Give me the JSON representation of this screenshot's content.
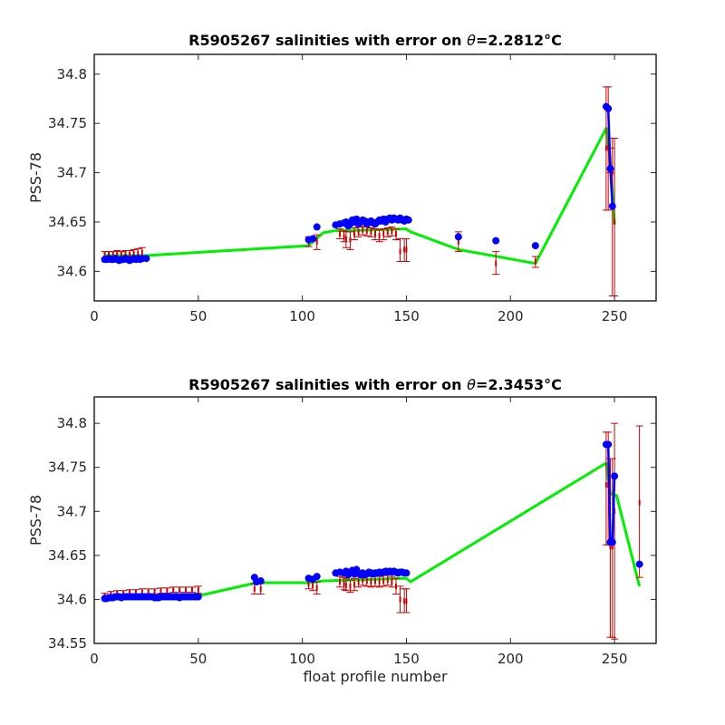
{
  "chart_data": [
    {
      "type": "line",
      "title_prefix": "R5905267 salinities with error on ",
      "title_theta": "θ",
      "title_value": "=2.2812",
      "title_unit": "°C",
      "xlabel": "",
      "ylabel": "PSS-78",
      "xlim": [
        0,
        270
      ],
      "ylim": [
        34.57,
        34.82
      ],
      "xticks": [
        0,
        50,
        100,
        150,
        200,
        250
      ],
      "yticks": [
        34.6,
        34.65,
        34.7,
        34.75,
        34.8
      ],
      "colors": {
        "points": "#0000ff",
        "errorbars": "#cc0000",
        "fit": "#00ee00"
      },
      "points": [
        [
          5,
          34.612
        ],
        [
          6,
          34.612
        ],
        [
          7,
          34.613
        ],
        [
          8,
          34.612
        ],
        [
          9,
          34.612
        ],
        [
          10,
          34.613
        ],
        [
          11,
          34.612
        ],
        [
          12,
          34.611
        ],
        [
          13,
          34.612
        ],
        [
          14,
          34.612
        ],
        [
          15,
          34.613
        ],
        [
          16,
          34.612
        ],
        [
          17,
          34.611
        ],
        [
          18,
          34.612
        ],
        [
          19,
          34.613
        ],
        [
          20,
          34.612
        ],
        [
          21,
          34.613
        ],
        [
          22,
          34.612
        ],
        [
          23,
          34.613
        ],
        [
          25,
          34.613
        ],
        [
          103,
          34.632
        ],
        [
          105,
          34.633
        ],
        [
          107,
          34.645
        ],
        [
          116,
          34.647
        ],
        [
          118,
          34.648
        ],
        [
          120,
          34.649
        ],
        [
          121,
          34.65
        ],
        [
          122,
          34.646
        ],
        [
          123,
          34.648
        ],
        [
          124,
          34.652
        ],
        [
          125,
          34.65
        ],
        [
          126,
          34.653
        ],
        [
          127,
          34.648
        ],
        [
          128,
          34.65
        ],
        [
          129,
          34.652
        ],
        [
          130,
          34.651
        ],
        [
          131,
          34.648
        ],
        [
          132,
          34.65
        ],
        [
          133,
          34.651
        ],
        [
          134,
          34.649
        ],
        [
          135,
          34.648
        ],
        [
          136,
          34.65
        ],
        [
          137,
          34.652
        ],
        [
          138,
          34.651
        ],
        [
          139,
          34.653
        ],
        [
          140,
          34.65
        ],
        [
          141,
          34.653
        ],
        [
          142,
          34.654
        ],
        [
          143,
          34.652
        ],
        [
          144,
          34.654
        ],
        [
          145,
          34.653
        ],
        [
          146,
          34.652
        ],
        [
          147,
          34.654
        ],
        [
          148,
          34.652
        ],
        [
          149,
          34.651
        ],
        [
          150,
          34.653
        ],
        [
          151,
          34.652
        ],
        [
          175,
          34.635
        ],
        [
          193,
          34.631
        ],
        [
          212,
          34.626
        ],
        [
          246,
          34.767
        ],
        [
          247,
          34.765
        ],
        [
          248,
          34.704
        ],
        [
          249,
          34.666
        ]
      ],
      "errorbars": [
        [
          5,
          34.617,
          34.62,
          34.613
        ],
        [
          7,
          34.617,
          34.62,
          34.613
        ],
        [
          9,
          34.617,
          34.62,
          34.613
        ],
        [
          11,
          34.618,
          34.621,
          34.614
        ],
        [
          13,
          34.617,
          34.62,
          34.613
        ],
        [
          15,
          34.618,
          34.621,
          34.614
        ],
        [
          17,
          34.617,
          34.621,
          34.613
        ],
        [
          19,
          34.618,
          34.622,
          34.614
        ],
        [
          21,
          34.618,
          34.623,
          34.613
        ],
        [
          23,
          34.619,
          34.624,
          34.614
        ],
        [
          103,
          34.63,
          34.635,
          34.625
        ],
        [
          107,
          34.63,
          34.637,
          34.622
        ],
        [
          118,
          34.638,
          34.643,
          34.633
        ],
        [
          120,
          34.635,
          34.641,
          34.63
        ],
        [
          121,
          34.633,
          34.64,
          34.624
        ],
        [
          123,
          34.632,
          34.64,
          34.622
        ],
        [
          125,
          34.638,
          34.644,
          34.632
        ],
        [
          127,
          34.64,
          34.645,
          34.635
        ],
        [
          129,
          34.642,
          34.646,
          34.637
        ],
        [
          131,
          34.641,
          34.645,
          34.636
        ],
        [
          133,
          34.64,
          34.644,
          34.635
        ],
        [
          135,
          34.638,
          34.643,
          34.632
        ],
        [
          137,
          34.636,
          34.642,
          34.63
        ],
        [
          139,
          34.638,
          34.643,
          34.632
        ],
        [
          141,
          34.64,
          34.644,
          34.635
        ],
        [
          143,
          34.641,
          34.645,
          34.636
        ],
        [
          145,
          34.638,
          34.643,
          34.632
        ],
        [
          147,
          34.62,
          34.633,
          34.61
        ],
        [
          149,
          34.622,
          34.633,
          34.61
        ],
        [
          150,
          34.622,
          34.633,
          34.61
        ],
        [
          175,
          34.63,
          34.64,
          34.62
        ],
        [
          193,
          34.608,
          34.62,
          34.597
        ],
        [
          212,
          34.61,
          34.615,
          34.604
        ],
        [
          246,
          34.725,
          34.787,
          34.662
        ],
        [
          247,
          34.725,
          34.787,
          34.662
        ],
        [
          248,
          34.715,
          34.725,
          34.7
        ],
        [
          249,
          34.7,
          34.735,
          34.575
        ],
        [
          250,
          34.65,
          34.735,
          34.575
        ]
      ],
      "fit": [
        [
          5,
          34.616
        ],
        [
          25,
          34.616
        ],
        [
          103,
          34.626
        ],
        [
          110,
          34.639
        ],
        [
          115,
          34.641
        ],
        [
          150,
          34.643
        ],
        [
          152,
          34.64
        ],
        [
          175,
          34.622
        ],
        [
          212,
          34.608
        ],
        [
          246,
          34.745
        ],
        [
          248,
          34.71
        ],
        [
          250,
          34.648
        ]
      ]
    },
    {
      "type": "line",
      "title_prefix": "R5905267 salinities with error on ",
      "title_theta": "θ",
      "title_value": "=2.3453",
      "title_unit": "°C",
      "xlabel": "float profile number",
      "ylabel": "PSS-78",
      "xlim": [
        0,
        270
      ],
      "ylim": [
        34.55,
        34.83
      ],
      "xticks": [
        0,
        50,
        100,
        150,
        200,
        250
      ],
      "yticks": [
        34.55,
        34.6,
        34.65,
        34.7,
        34.75,
        34.8
      ],
      "colors": {
        "points": "#0000ff",
        "errorbars": "#cc0000",
        "fit": "#00ee00"
      },
      "points": [
        [
          5,
          34.601
        ],
        [
          6,
          34.601
        ],
        [
          7,
          34.602
        ],
        [
          8,
          34.602
        ],
        [
          9,
          34.602
        ],
        [
          10,
          34.603
        ],
        [
          11,
          34.603
        ],
        [
          12,
          34.603
        ],
        [
          13,
          34.602
        ],
        [
          14,
          34.603
        ],
        [
          15,
          34.603
        ],
        [
          16,
          34.603
        ],
        [
          17,
          34.603
        ],
        [
          18,
          34.603
        ],
        [
          19,
          34.603
        ],
        [
          20,
          34.603
        ],
        [
          21,
          34.603
        ],
        [
          22,
          34.603
        ],
        [
          23,
          34.603
        ],
        [
          24,
          34.603
        ],
        [
          25,
          34.603
        ],
        [
          26,
          34.603
        ],
        [
          27,
          34.603
        ],
        [
          28,
          34.603
        ],
        [
          29,
          34.602
        ],
        [
          30,
          34.602
        ],
        [
          31,
          34.602
        ],
        [
          32,
          34.603
        ],
        [
          33,
          34.603
        ],
        [
          34,
          34.603
        ],
        [
          35,
          34.603
        ],
        [
          36,
          34.603
        ],
        [
          37,
          34.603
        ],
        [
          38,
          34.603
        ],
        [
          39,
          34.603
        ],
        [
          40,
          34.603
        ],
        [
          41,
          34.602
        ],
        [
          42,
          34.603
        ],
        [
          43,
          34.603
        ],
        [
          44,
          34.603
        ],
        [
          45,
          34.603
        ],
        [
          46,
          34.603
        ],
        [
          47,
          34.603
        ],
        [
          48,
          34.603
        ],
        [
          49,
          34.603
        ],
        [
          50,
          34.603
        ],
        [
          77,
          34.625
        ],
        [
          78,
          34.62
        ],
        [
          80,
          34.621
        ],
        [
          103,
          34.624
        ],
        [
          105,
          34.623
        ],
        [
          107,
          34.626
        ],
        [
          116,
          34.63
        ],
        [
          118,
          34.631
        ],
        [
          120,
          34.63
        ],
        [
          121,
          34.632
        ],
        [
          122,
          34.628
        ],
        [
          123,
          34.63
        ],
        [
          124,
          34.633
        ],
        [
          125,
          34.629
        ],
        [
          126,
          34.634
        ],
        [
          127,
          34.63
        ],
        [
          128,
          34.628
        ],
        [
          129,
          34.63
        ],
        [
          130,
          34.628
        ],
        [
          131,
          34.629
        ],
        [
          132,
          34.631
        ],
        [
          133,
          34.63
        ],
        [
          134,
          34.629
        ],
        [
          135,
          34.63
        ],
        [
          136,
          34.63
        ],
        [
          137,
          34.631
        ],
        [
          138,
          34.63
        ],
        [
          139,
          34.631
        ],
        [
          140,
          34.632
        ],
        [
          141,
          34.631
        ],
        [
          142,
          34.632
        ],
        [
          143,
          34.631
        ],
        [
          144,
          34.632
        ],
        [
          145,
          34.631
        ],
        [
          146,
          34.63
        ],
        [
          147,
          34.631
        ],
        [
          148,
          34.631
        ],
        [
          149,
          34.63
        ],
        [
          150,
          34.63
        ],
        [
          246,
          34.776
        ],
        [
          247,
          34.776
        ],
        [
          248,
          34.665
        ],
        [
          249,
          34.665
        ],
        [
          250,
          34.74
        ],
        [
          262,
          34.64
        ]
      ],
      "errorbars": [
        [
          5,
          34.604,
          34.607,
          34.601
        ],
        [
          8,
          34.606,
          34.609,
          34.603
        ],
        [
          11,
          34.607,
          34.61,
          34.604
        ],
        [
          14,
          34.607,
          34.61,
          34.604
        ],
        [
          17,
          34.608,
          34.611,
          34.605
        ],
        [
          20,
          34.608,
          34.611,
          34.605
        ],
        [
          23,
          34.609,
          34.612,
          34.606
        ],
        [
          26,
          34.609,
          34.612,
          34.606
        ],
        [
          29,
          34.609,
          34.612,
          34.606
        ],
        [
          32,
          34.61,
          34.613,
          34.607
        ],
        [
          35,
          34.61,
          34.613,
          34.607
        ],
        [
          38,
          34.611,
          34.614,
          34.608
        ],
        [
          41,
          34.611,
          34.614,
          34.608
        ],
        [
          44,
          34.611,
          34.614,
          34.608
        ],
        [
          47,
          34.611,
          34.614,
          34.608
        ],
        [
          50,
          34.611,
          34.615,
          34.607
        ],
        [
          77,
          34.612,
          34.618,
          34.606
        ],
        [
          80,
          34.612,
          34.618,
          34.606
        ],
        [
          103,
          34.618,
          34.624,
          34.612
        ],
        [
          105,
          34.616,
          34.622,
          34.61
        ],
        [
          107,
          34.613,
          34.62,
          34.606
        ],
        [
          118,
          34.62,
          34.626,
          34.614
        ],
        [
          120,
          34.618,
          34.625,
          34.611
        ],
        [
          121,
          34.616,
          34.624,
          34.61
        ],
        [
          123,
          34.615,
          34.622,
          34.608
        ],
        [
          125,
          34.617,
          34.624,
          34.61
        ],
        [
          127,
          34.62,
          34.626,
          34.614
        ],
        [
          129,
          34.622,
          34.627,
          34.616
        ],
        [
          131,
          34.621,
          34.627,
          34.615
        ],
        [
          133,
          34.62,
          34.626,
          34.614
        ],
        [
          135,
          34.621,
          34.627,
          34.615
        ],
        [
          137,
          34.62,
          34.626,
          34.614
        ],
        [
          139,
          34.621,
          34.627,
          34.615
        ],
        [
          141,
          34.622,
          34.628,
          34.616
        ],
        [
          143,
          34.62,
          34.626,
          34.614
        ],
        [
          145,
          34.615,
          34.624,
          34.606
        ],
        [
          147,
          34.6,
          34.615,
          34.585
        ],
        [
          149,
          34.598,
          34.612,
          34.585
        ],
        [
          150,
          34.598,
          34.612,
          34.585
        ],
        [
          246,
          34.73,
          34.79,
          34.662
        ],
        [
          247,
          34.73,
          34.79,
          34.662
        ],
        [
          248,
          34.66,
          34.76,
          34.557
        ],
        [
          249,
          34.66,
          34.76,
          34.557
        ],
        [
          250,
          34.7,
          34.8,
          34.555
        ],
        [
          262,
          34.71,
          34.797,
          34.625
        ]
      ],
      "fit": [
        [
          5,
          34.6
        ],
        [
          25,
          34.603
        ],
        [
          50,
          34.604
        ],
        [
          78,
          34.619
        ],
        [
          103,
          34.619
        ],
        [
          110,
          34.621
        ],
        [
          150,
          34.624
        ],
        [
          152,
          34.62
        ],
        [
          246,
          34.755
        ],
        [
          248,
          34.72
        ],
        [
          251,
          34.718
        ],
        [
          262,
          34.615
        ]
      ]
    }
  ]
}
